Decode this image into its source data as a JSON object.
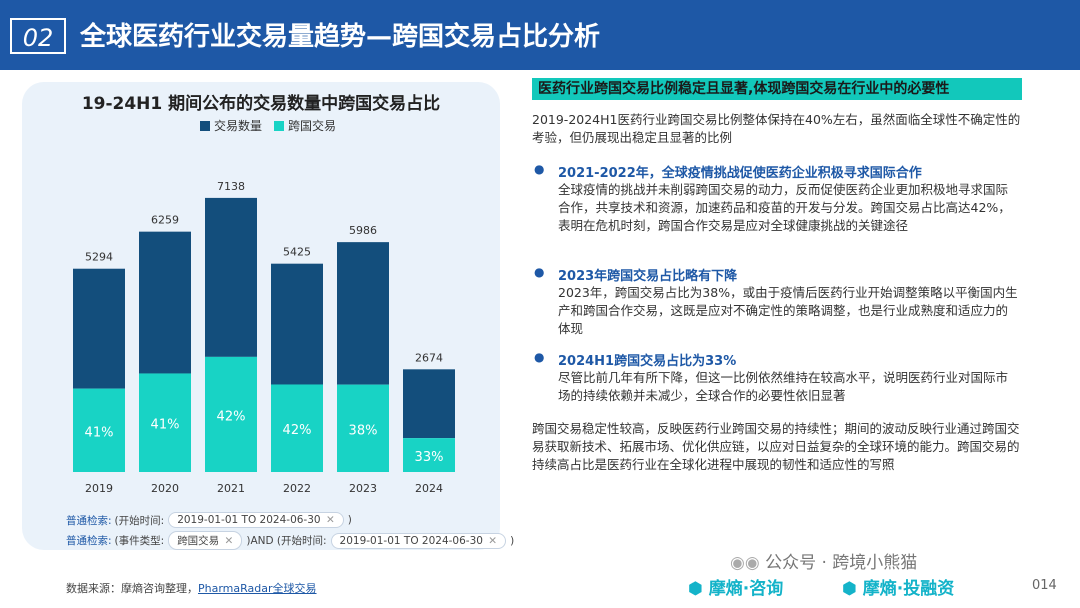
{
  "header": {
    "section_number": "02",
    "title": "全球医药行业交易量趋势—跨国交易占比分析"
  },
  "chart_data": {
    "type": "bar",
    "title": "19-24H1 期间公布的交易数量中跨国交易占比",
    "categories": [
      "2019",
      "2020",
      "2021",
      "2022",
      "2023",
      "2024"
    ],
    "series": [
      {
        "name": "交易数量",
        "values": [
          5294,
          6259,
          7138,
          5425,
          5986,
          2674
        ],
        "color": "#134e7c"
      },
      {
        "name": "跨国交易",
        "values": [
          2171,
          2566,
          2998,
          2279,
          2275,
          882
        ],
        "color": "#18d3c5"
      }
    ],
    "share_labels": [
      "41%",
      "41%",
      "42%",
      "42%",
      "38%",
      "33%"
    ],
    "ylim": [
      0,
      7500
    ],
    "grid": false,
    "legend": "top"
  },
  "query": {
    "line1": {
      "label": "普通检索:",
      "field": "(开始时间:",
      "value": "2019-01-01 TO 2024-06-30",
      "close_icon": "close-icon",
      "tail": ")"
    },
    "line2": {
      "label": "普通检索:",
      "field": "(事件类型:",
      "value1": "跨国交易",
      "mid": ")AND (开始时间:",
      "value2": "2019-01-01 TO 2024-06-30",
      "close_icon": "close-icon",
      "tail": ")"
    }
  },
  "source": {
    "prefix": "数据来源：摩熵咨询整理，",
    "link": "PharmaRadar全球交易"
  },
  "analysis": {
    "heading": "医药行业跨国交易比例稳定且显著,体现跨国交易在行业中的必要性",
    "intro": "2019-2024H1医药行业跨国交易比例整体保持在40%左右，虽然面临全球性不确定性的考验，但仍展现出稳定且显著的比例",
    "bullets": [
      {
        "title": "2021-2022年，全球疫情挑战促使医药企业积极寻求国际合作",
        "text": "全球疫情的挑战并未削弱跨国交易的动力，反而促使医药企业更加积极地寻求国际合作，共享技术和资源，加速药品和疫苗的开发与分发。跨国交易占比高达42%，表明在危机时刻，跨国合作交易是应对全球健康挑战的关键途径"
      },
      {
        "title": "2023年跨国交易占比略有下降",
        "text": "2023年，跨国交易占比为38%，或由于疫情后医药行业开始调整策略以平衡国内生产和跨国合作交易，这既是应对不确定性的策略调整，也是行业成熟度和适应力的体现"
      },
      {
        "title": "2024H1跨国交易占比为33%",
        "text": "尽管比前几年有所下降，但这一比例依然维持在较高水平，说明医药行业对国际市场的持续依赖并未减少，全球合作的必要性依旧显著"
      }
    ],
    "conclusion": "跨国交易稳定性较高，反映医药行业跨国交易的持续性；期间的波动反映行业通过跨国交易获取新技术、拓展市场、优化供应链，以应对日益复杂的全球环境的能力。跨国交易的持续高占比是医药行业在全球化进程中展现的韧性和适应性的写照"
  },
  "footer": {
    "wechat": "公众号 · 跨境小熊猫",
    "brand1": "摩熵·咨询",
    "brand2": "摩熵·投融资",
    "page": "014"
  }
}
